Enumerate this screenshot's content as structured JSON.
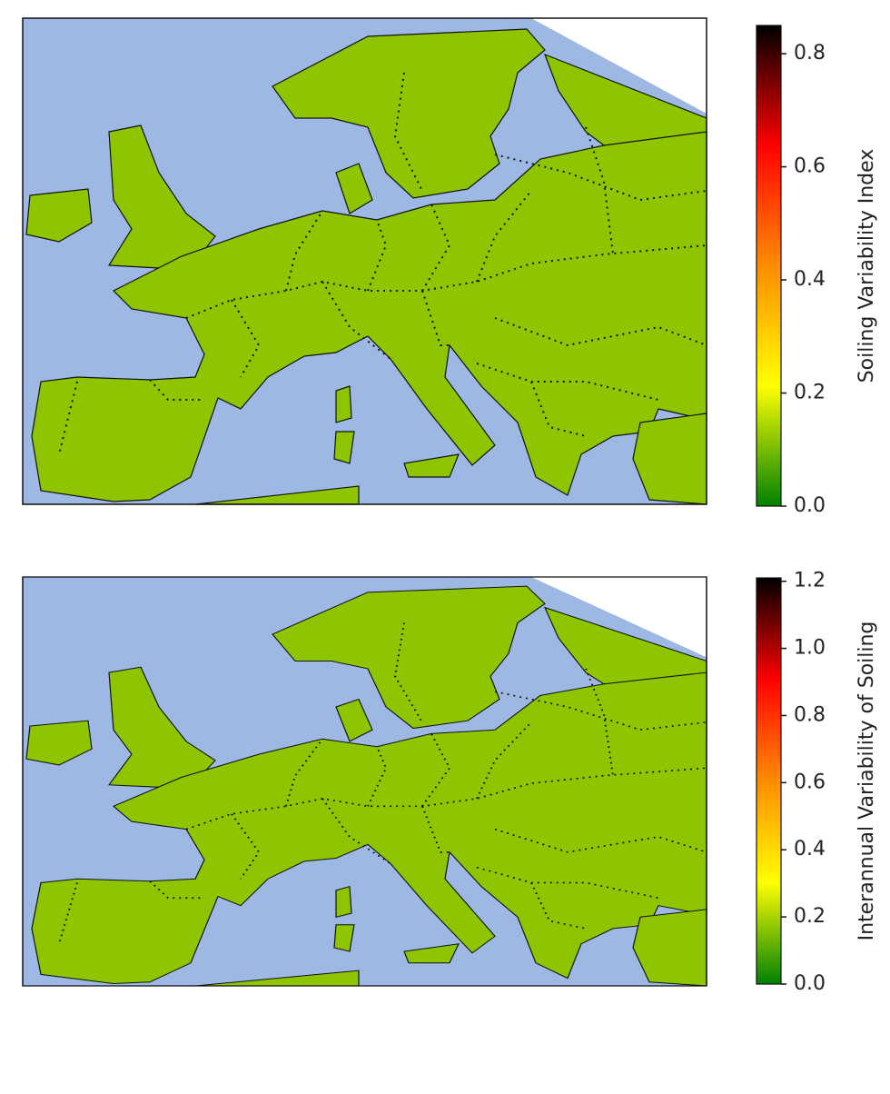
{
  "maps": [
    {
      "colorbar": {
        "label": "Soiling Variability Index",
        "lim": [
          0,
          0.85
        ],
        "ticks": [
          {
            "value": 0,
            "label": "0.0"
          },
          {
            "value": 0.2,
            "label": "0.2"
          },
          {
            "value": 0.4,
            "label": "0.4"
          },
          {
            "value": 0.6,
            "label": "0.6"
          },
          {
            "value": 0.8,
            "label": "0.8"
          }
        ],
        "colormap": [
          "#008000",
          "#ffff00",
          "#ff8c00",
          "#ff0000",
          "#000000"
        ]
      }
    },
    {
      "colorbar": {
        "label": "Interannual Variability of Soiling",
        "lim": [
          0,
          1.21
        ],
        "ticks": [
          {
            "value": 0,
            "label": "0.0"
          },
          {
            "value": 0.2,
            "label": "0.2"
          },
          {
            "value": 0.4,
            "label": "0.4"
          },
          {
            "value": 0.6,
            "label": "0.6"
          },
          {
            "value": 0.8,
            "label": "0.8"
          },
          {
            "value": 1.0,
            "label": "1.0"
          },
          {
            "value": 1.2,
            "label": "1.2"
          }
        ],
        "colormap": [
          "#008000",
          "#ffff00",
          "#ff8c00",
          "#ff0000",
          "#000000"
        ]
      }
    }
  ]
}
